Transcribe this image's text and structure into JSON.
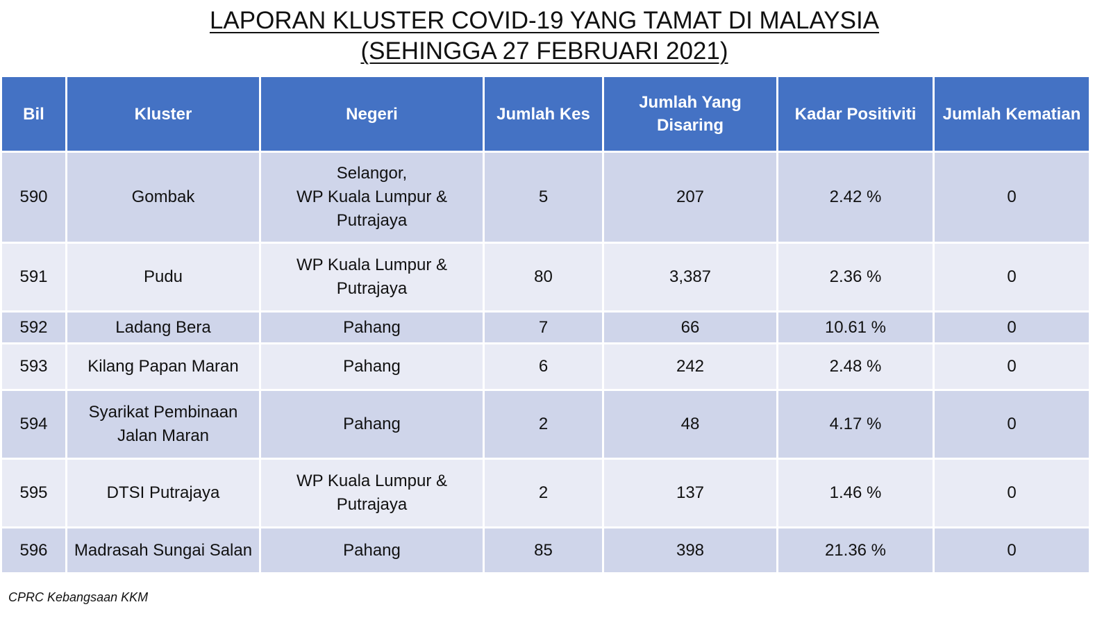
{
  "title": {
    "line1": "LAPORAN KLUSTER COVID-19 YANG TAMAT DI MALAYSIA",
    "line2": "(SEHINGGA 27 FEBRUARI 2021)"
  },
  "table": {
    "headers": [
      "Bil",
      "Kluster",
      "Negeri",
      "Jumlah Kes",
      "Jumlah Yang Disaring",
      "Kadar Positiviti",
      "Jumlah Kematian"
    ],
    "rows": [
      {
        "bil": "590",
        "kluster": "Gombak",
        "negeri": "Selangor,\nWP Kuala Lumpur &\nPutrajaya",
        "kes": "5",
        "disaring": "207",
        "positiviti": "2.42 %",
        "kematian": "0"
      },
      {
        "bil": "591",
        "kluster": "Pudu",
        "negeri": "WP Kuala Lumpur &\nPutrajaya",
        "kes": "80",
        "disaring": "3,387",
        "positiviti": "2.36 %",
        "kematian": "0"
      },
      {
        "bil": "592",
        "kluster": "Ladang Bera",
        "negeri": "Pahang",
        "kes": "7",
        "disaring": "66",
        "positiviti": "10.61 %",
        "kematian": "0"
      },
      {
        "bil": "593",
        "kluster": "Kilang Papan Maran",
        "negeri": "Pahang",
        "kes": "6",
        "disaring": "242",
        "positiviti": "2.48 %",
        "kematian": "0"
      },
      {
        "bil": "594",
        "kluster": "Syarikat Pembinaan\nJalan Maran",
        "negeri": "Pahang",
        "kes": "2",
        "disaring": "48",
        "positiviti": "4.17 %",
        "kematian": "0"
      },
      {
        "bil": "595",
        "kluster": "DTSI Putrajaya",
        "negeri": "WP Kuala Lumpur &\nPutrajaya",
        "kes": "2",
        "disaring": "137",
        "positiviti": "1.46 %",
        "kematian": "0"
      },
      {
        "bil": "596",
        "kluster": "Madrasah Sungai Salan",
        "negeri": "Pahang",
        "kes": "85",
        "disaring": "398",
        "positiviti": "21.36 %",
        "kematian": "0"
      }
    ]
  },
  "footer": "CPRC Kebangsaan KKM",
  "colors": {
    "header_bg": "#4472c4",
    "row_dark": "#cfd5ea",
    "row_light": "#e9ebf5"
  }
}
